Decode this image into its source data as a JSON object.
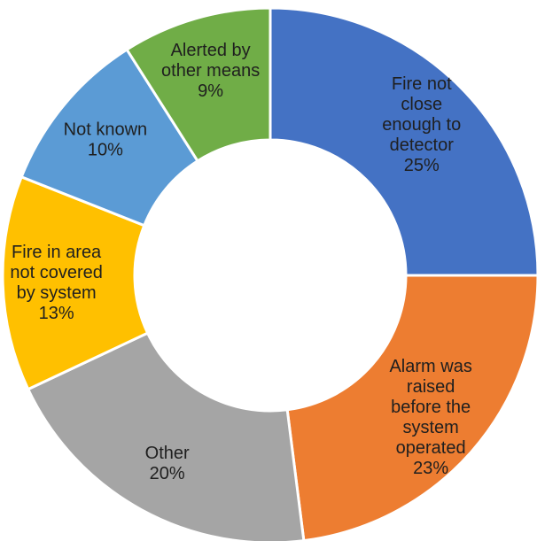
{
  "chart_data": {
    "type": "pie",
    "variant": "donut",
    "start_angle_deg": 0,
    "direction": "clockwise",
    "slices": [
      {
        "label_lines": [
          "Fire not",
          "close",
          "enough to",
          "detector"
        ],
        "value": 25,
        "percent_label": "25%",
        "color": "#4472C4"
      },
      {
        "label_lines": [
          "Alarm was",
          "raised",
          "before the",
          "system",
          "operated"
        ],
        "value": 23,
        "percent_label": "23%",
        "color": "#ED7D31"
      },
      {
        "label_lines": [
          "Other"
        ],
        "value": 20,
        "percent_label": "20%",
        "color": "#A5A5A5"
      },
      {
        "label_lines": [
          "Fire in area",
          "not covered",
          "by system"
        ],
        "value": 13,
        "percent_label": "13%",
        "color": "#FFC000"
      },
      {
        "label_lines": [
          "Not known"
        ],
        "value": 10,
        "percent_label": "10%",
        "color": "#5B9BD5"
      },
      {
        "label_lines": [
          "Alerted by",
          "other means"
        ],
        "value": 9,
        "percent_label": "9%",
        "color": "#70AD47"
      }
    ]
  }
}
